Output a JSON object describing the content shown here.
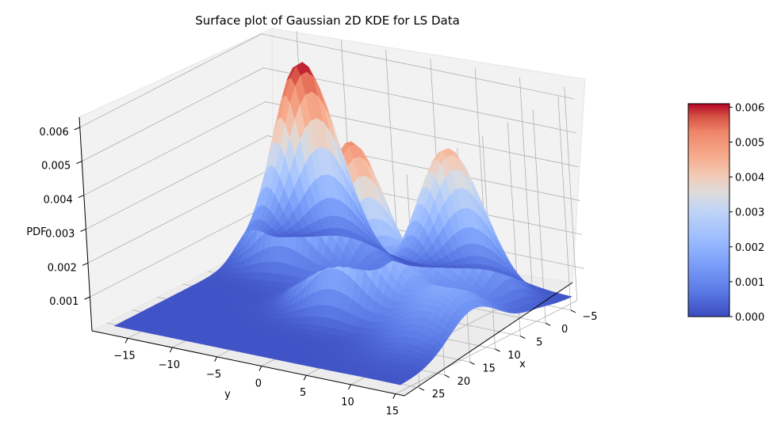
{
  "chart_data": {
    "type": "surface",
    "title": "Surface plot of Gaussian 2D KDE for LS Data",
    "xlabel": "x",
    "ylabel": "y",
    "zlabel": "PDF",
    "x_ticks": [
      "−5",
      "0",
      "5",
      "10",
      "15",
      "20",
      "25"
    ],
    "y_ticks": [
      "−15",
      "−10",
      "−5",
      "0",
      "5",
      "10",
      "15"
    ],
    "z_ticks": [
      "0.001",
      "0.002",
      "0.003",
      "0.004",
      "0.005",
      "0.006"
    ],
    "xlim": [
      -8,
      28
    ],
    "ylim": [
      -19,
      16
    ],
    "zlim": [
      0,
      0.0063
    ],
    "colormap": "coolwarm",
    "colorbar": {
      "ticks": [
        "0.000",
        "0.001",
        "0.002",
        "0.003",
        "0.004",
        "0.005",
        "0.006"
      ],
      "range": [
        0,
        0.0061
      ]
    },
    "peaks": [
      {
        "x": 0,
        "y": -10,
        "pdf": 0.0061
      },
      {
        "x": 10,
        "y": 1,
        "pdf": 0.0051
      },
      {
        "x": 0,
        "y": 6,
        "pdf": 0.0044
      },
      {
        "x": 12,
        "y": 12,
        "pdf": 0.0016
      }
    ],
    "grid": true
  },
  "colors": {
    "pane": "#f2f2f2",
    "grid": "#b0b0b0",
    "cmap_low": "#3b4cc0",
    "cmap_mid": "#dddddd",
    "cmap_high": "#b40426"
  }
}
